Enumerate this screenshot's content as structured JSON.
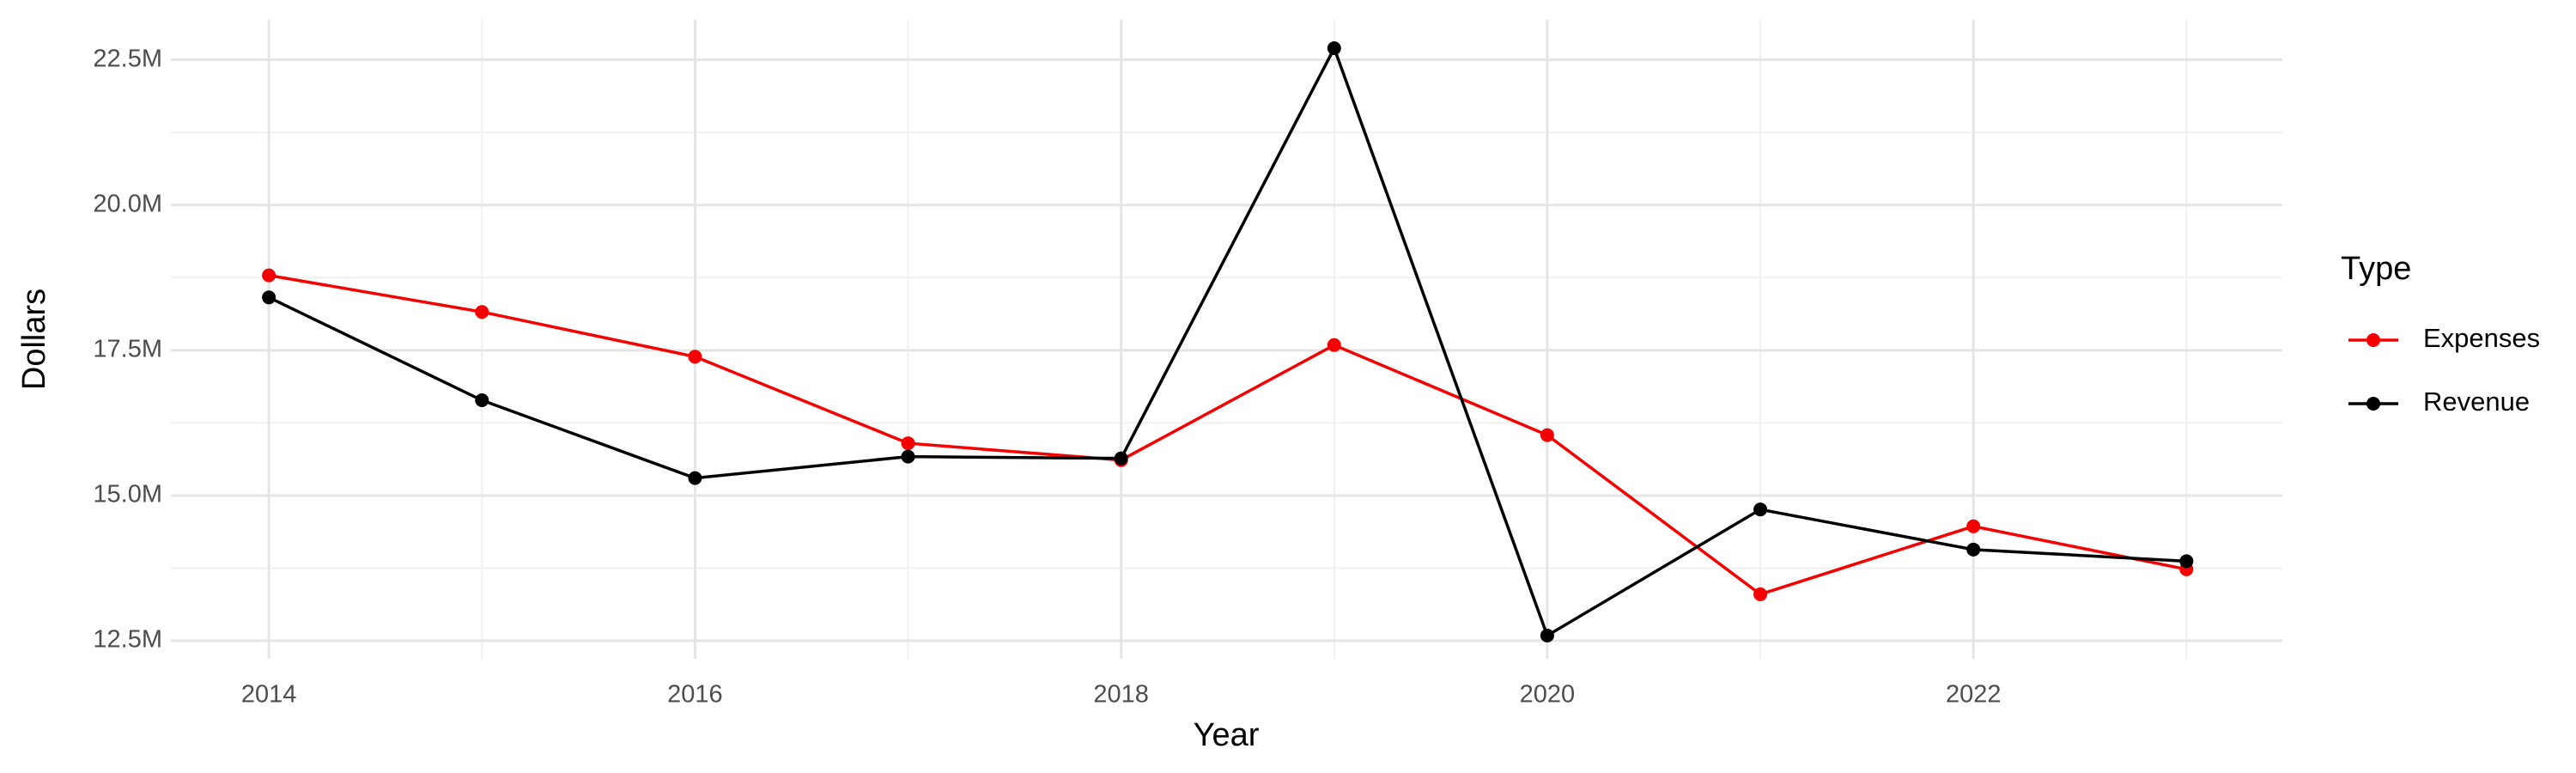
{
  "chart_data": {
    "type": "line",
    "x_label": "Year",
    "y_label": "Dollars",
    "legend_title": "Type",
    "x": [
      2014,
      2015,
      2016,
      2017,
      2018,
      2019,
      2020,
      2021,
      2022,
      2023
    ],
    "series": [
      {
        "name": "Expenses",
        "color": "#f50000",
        "values": [
          18790000,
          18160000,
          17390000,
          15900000,
          15610000,
          17590000,
          16040000,
          13300000,
          14470000,
          13730000
        ]
      },
      {
        "name": "Revenue",
        "color": "#000000",
        "values": [
          18410000,
          16640000,
          15300000,
          15670000,
          15640000,
          22700000,
          12590000,
          14760000,
          14070000,
          13870000
        ]
      }
    ],
    "xlim": [
      2013.54,
      2023.45
    ],
    "xticks": [
      2014,
      2016,
      2018,
      2020,
      2022
    ],
    "ylim": [
      12190000,
      23190000
    ],
    "yticks": [
      {
        "value": 12500000,
        "label": "12.5M"
      },
      {
        "value": 15000000,
        "label": "15.0M"
      },
      {
        "value": 17500000,
        "label": "17.5M"
      },
      {
        "value": 20000000,
        "label": "20.0M"
      },
      {
        "value": 22500000,
        "label": "22.5M"
      }
    ],
    "grid": true,
    "legend": "right"
  }
}
